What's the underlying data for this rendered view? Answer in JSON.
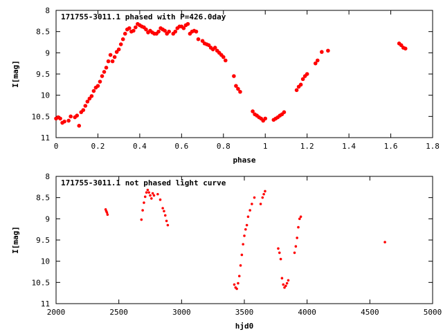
{
  "chart_data": [
    {
      "type": "scatter",
      "title": "171755-3011.1 phased with P=426.0day",
      "xlabel": "phase",
      "ylabel": "I[mag]",
      "xlim": [
        0,
        1.8
      ],
      "ylim": [
        11,
        8
      ],
      "y_inverted": true,
      "grid": false,
      "marker_color": "#ff0000",
      "xticks": [
        0,
        0.2,
        0.4,
        0.6,
        0.8,
        1,
        1.2,
        1.4,
        1.6,
        1.8
      ],
      "xtick_labels": [
        "0",
        "0.2",
        "0.4",
        "0.6",
        "0.8",
        "1",
        "1.2",
        "1.4",
        "1.6",
        "1.8"
      ],
      "yticks": [
        8,
        8.5,
        9,
        9.5,
        10,
        10.5,
        11
      ],
      "ytick_labels": [
        "8",
        "8.5",
        "9",
        "9.5",
        "10",
        "10.5",
        "11"
      ],
      "series": [
        {
          "points": [
            [
              0.0,
              10.55
            ],
            [
              0.01,
              10.52
            ],
            [
              0.02,
              10.55
            ],
            [
              0.03,
              10.65
            ],
            [
              0.04,
              10.62
            ],
            [
              0.06,
              10.6
            ],
            [
              0.07,
              10.5
            ],
            [
              0.09,
              10.52
            ],
            [
              0.1,
              10.48
            ],
            [
              0.11,
              10.72
            ],
            [
              0.12,
              10.4
            ],
            [
              0.13,
              10.35
            ],
            [
              0.14,
              10.25
            ],
            [
              0.15,
              10.15
            ],
            [
              0.16,
              10.08
            ],
            [
              0.17,
              10.02
            ],
            [
              0.18,
              9.9
            ],
            [
              0.19,
              9.82
            ],
            [
              0.2,
              9.78
            ],
            [
              0.21,
              9.68
            ],
            [
              0.22,
              9.55
            ],
            [
              0.23,
              9.45
            ],
            [
              0.24,
              9.35
            ],
            [
              0.25,
              9.2
            ],
            [
              0.26,
              9.05
            ],
            [
              0.27,
              9.2
            ],
            [
              0.28,
              9.1
            ],
            [
              0.29,
              8.98
            ],
            [
              0.3,
              8.92
            ],
            [
              0.31,
              8.8
            ],
            [
              0.32,
              8.68
            ],
            [
              0.33,
              8.55
            ],
            [
              0.34,
              8.45
            ],
            [
              0.35,
              8.42
            ],
            [
              0.36,
              8.5
            ],
            [
              0.37,
              8.48
            ],
            [
              0.38,
              8.4
            ],
            [
              0.39,
              8.32
            ],
            [
              0.4,
              8.35
            ],
            [
              0.41,
              8.38
            ],
            [
              0.42,
              8.4
            ],
            [
              0.43,
              8.45
            ],
            [
              0.44,
              8.52
            ],
            [
              0.45,
              8.48
            ],
            [
              0.46,
              8.52
            ],
            [
              0.47,
              8.55
            ],
            [
              0.48,
              8.55
            ],
            [
              0.49,
              8.5
            ],
            [
              0.5,
              8.42
            ],
            [
              0.51,
              8.45
            ],
            [
              0.52,
              8.48
            ],
            [
              0.53,
              8.55
            ],
            [
              0.54,
              8.5
            ],
            [
              0.56,
              8.55
            ],
            [
              0.57,
              8.5
            ],
            [
              0.58,
              8.42
            ],
            [
              0.59,
              8.38
            ],
            [
              0.6,
              8.38
            ],
            [
              0.61,
              8.42
            ],
            [
              0.62,
              8.35
            ],
            [
              0.63,
              8.32
            ],
            [
              0.64,
              8.55
            ],
            [
              0.65,
              8.5
            ],
            [
              0.66,
              8.48
            ],
            [
              0.67,
              8.5
            ],
            [
              0.68,
              8.68
            ],
            [
              0.7,
              8.72
            ],
            [
              0.71,
              8.78
            ],
            [
              0.72,
              8.8
            ],
            [
              0.73,
              8.82
            ],
            [
              0.74,
              8.88
            ],
            [
              0.75,
              8.92
            ],
            [
              0.76,
              8.88
            ],
            [
              0.77,
              8.95
            ],
            [
              0.78,
              9.0
            ],
            [
              0.79,
              9.05
            ],
            [
              0.8,
              9.1
            ],
            [
              0.81,
              9.18
            ],
            [
              0.85,
              9.55
            ],
            [
              0.86,
              9.78
            ],
            [
              0.87,
              9.85
            ],
            [
              0.88,
              9.92
            ],
            [
              0.94,
              10.38
            ],
            [
              0.95,
              10.45
            ],
            [
              0.96,
              10.48
            ],
            [
              0.97,
              10.52
            ],
            [
              0.98,
              10.55
            ],
            [
              0.99,
              10.6
            ],
            [
              1.0,
              10.55
            ],
            [
              1.04,
              10.58
            ],
            [
              1.05,
              10.55
            ],
            [
              1.06,
              10.52
            ],
            [
              1.07,
              10.48
            ],
            [
              1.08,
              10.45
            ],
            [
              1.09,
              10.4
            ],
            [
              1.15,
              9.88
            ],
            [
              1.16,
              9.8
            ],
            [
              1.17,
              9.75
            ],
            [
              1.18,
              9.62
            ],
            [
              1.19,
              9.55
            ],
            [
              1.2,
              9.5
            ],
            [
              1.24,
              9.25
            ],
            [
              1.25,
              9.18
            ],
            [
              1.27,
              8.98
            ],
            [
              1.3,
              8.95
            ],
            [
              1.64,
              8.78
            ],
            [
              1.65,
              8.82
            ],
            [
              1.66,
              8.88
            ],
            [
              1.67,
              8.9
            ]
          ]
        }
      ]
    },
    {
      "type": "scatter",
      "title": "171755-3011.1 not phased light curve",
      "xlabel": "hjd0",
      "ylabel": "I[mag]",
      "xlim": [
        2000,
        5000
      ],
      "ylim": [
        11,
        8
      ],
      "y_inverted": true,
      "grid": false,
      "marker_color": "#ff0000",
      "xticks": [
        2000,
        2500,
        3000,
        3500,
        4000,
        4500,
        5000
      ],
      "xtick_labels": [
        "2000",
        "2500",
        "3000",
        "3500",
        "4000",
        "4500",
        "5000"
      ],
      "yticks": [
        8,
        8.5,
        9,
        9.5,
        10,
        10.5,
        11
      ],
      "ytick_labels": [
        "8",
        "8.5",
        "9",
        "9.5",
        "10",
        "10.5",
        "11"
      ],
      "series": [
        {
          "points": [
            [
              2395,
              8.78
            ],
            [
              2400,
              8.82
            ],
            [
              2405,
              8.85
            ],
            [
              2410,
              8.9
            ],
            [
              2680,
              9.02
            ],
            [
              2690,
              8.8
            ],
            [
              2700,
              8.62
            ],
            [
              2710,
              8.48
            ],
            [
              2720,
              8.38
            ],
            [
              2730,
              8.32
            ],
            [
              2740,
              8.38
            ],
            [
              2750,
              8.45
            ],
            [
              2760,
              8.52
            ],
            [
              2770,
              8.4
            ],
            [
              2780,
              8.45
            ],
            [
              2810,
              8.42
            ],
            [
              2830,
              8.55
            ],
            [
              2850,
              8.75
            ],
            [
              2860,
              8.82
            ],
            [
              2870,
              8.92
            ],
            [
              2880,
              9.05
            ],
            [
              2890,
              9.15
            ],
            [
              3420,
              10.55
            ],
            [
              3430,
              10.62
            ],
            [
              3440,
              10.65
            ],
            [
              3450,
              10.52
            ],
            [
              3460,
              10.35
            ],
            [
              3470,
              10.1
            ],
            [
              3480,
              9.85
            ],
            [
              3490,
              9.6
            ],
            [
              3500,
              9.4
            ],
            [
              3510,
              9.25
            ],
            [
              3520,
              9.15
            ],
            [
              3530,
              8.95
            ],
            [
              3545,
              8.8
            ],
            [
              3560,
              8.65
            ],
            [
              3580,
              8.5
            ],
            [
              3630,
              8.65
            ],
            [
              3645,
              8.5
            ],
            [
              3655,
              8.42
            ],
            [
              3665,
              8.35
            ],
            [
              3770,
              9.7
            ],
            [
              3780,
              9.8
            ],
            [
              3790,
              9.95
            ],
            [
              3800,
              10.4
            ],
            [
              3810,
              10.55
            ],
            [
              3820,
              10.62
            ],
            [
              3830,
              10.58
            ],
            [
              3840,
              10.52
            ],
            [
              3850,
              10.45
            ],
            [
              3900,
              9.8
            ],
            [
              3910,
              9.65
            ],
            [
              3920,
              9.45
            ],
            [
              3930,
              9.2
            ],
            [
              3940,
              9.0
            ],
            [
              3950,
              8.95
            ],
            [
              4620,
              9.55
            ]
          ]
        }
      ]
    }
  ]
}
